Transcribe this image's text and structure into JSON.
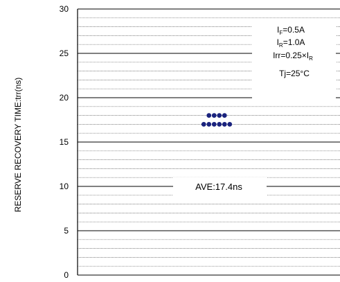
{
  "chart_data": {
    "type": "scatter",
    "ylabel": "RESERVE RECOVERY TIME:trr(ns)",
    "ylim": [
      0,
      30
    ],
    "yticks": [
      0,
      5,
      10,
      15,
      20,
      25,
      30
    ],
    "minor_step": 1,
    "grid": true,
    "series": [
      {
        "color": "#1a237e",
        "points": [
          {
            "y": 18.0
          },
          {
            "y": 18.0
          },
          {
            "y": 18.0
          },
          {
            "y": 18.0
          },
          {
            "y": 17.0
          },
          {
            "y": 17.0
          },
          {
            "y": 17.0
          },
          {
            "y": 17.0
          },
          {
            "y": 17.0
          },
          {
            "y": 17.0
          }
        ]
      }
    ],
    "conditions": {
      "if": {
        "main": "I",
        "sub": "F",
        "rest": "=0.5A"
      },
      "ir": {
        "main": "I",
        "sub": "R",
        "rest": "=1.0A"
      },
      "irr": {
        "main": "Irr=0.25×I",
        "sub": "R",
        "rest": ""
      },
      "tj": "Tj=25°C"
    },
    "average_label": "AVE:17.4ns"
  }
}
